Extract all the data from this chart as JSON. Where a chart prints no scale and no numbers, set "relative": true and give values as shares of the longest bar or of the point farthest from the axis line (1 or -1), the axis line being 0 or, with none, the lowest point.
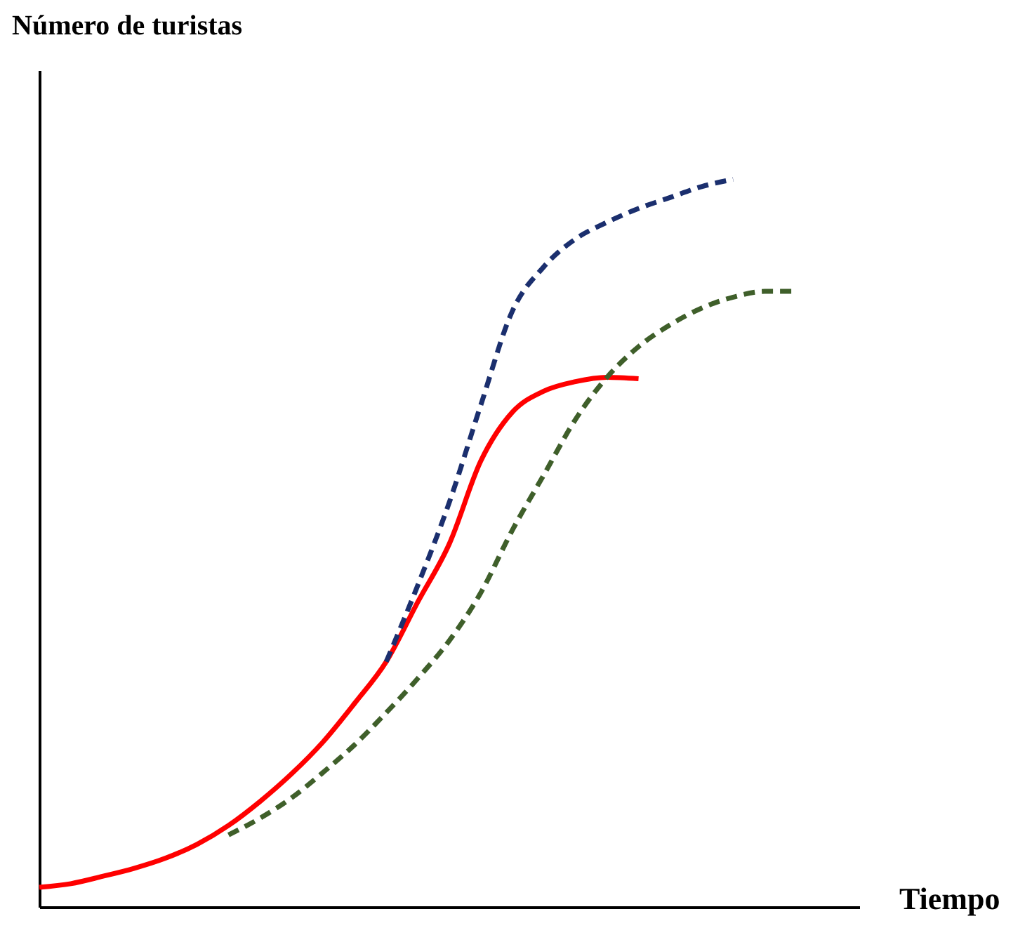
{
  "chart_data": {
    "type": "line",
    "relative": true,
    "xlabel": "Tiempo",
    "ylabel": "Número de turistas",
    "tick_labels": false,
    "grid": false,
    "legend": false,
    "categories": [
      null,
      null,
      null,
      null,
      null,
      null,
      null,
      null,
      null,
      null,
      null,
      null,
      null,
      null,
      null,
      null,
      null,
      null,
      null,
      null,
      null,
      null,
      null,
      null,
      null,
      null,
      null
    ],
    "series": [
      {
        "color": "#ff0000",
        "line_style": "solid",
        "values": [
          0.027,
          0.032,
          0.042,
          0.053,
          0.067,
          0.086,
          0.112,
          0.145,
          0.183,
          0.227,
          0.28,
          0.337,
          0.419,
          0.499,
          0.613,
          0.68,
          0.709,
          0.722,
          0.728,
          0.726,
          null,
          null,
          null,
          null,
          null,
          null,
          null
        ]
      },
      {
        "color": "#1b2f6e",
        "line_style": "dashed",
        "values": [
          null,
          null,
          null,
          null,
          null,
          null,
          null,
          null,
          null,
          null,
          null,
          0.337,
          0.442,
          0.556,
          0.69,
          0.819,
          0.88,
          0.918,
          0.941,
          0.96,
          0.975,
          0.99,
          1.0,
          null,
          null,
          null,
          null
        ]
      },
      {
        "color": "#3f5f2a",
        "line_style": "dashed",
        "values": [
          null,
          null,
          null,
          null,
          null,
          null,
          0.099,
          0.122,
          0.15,
          0.185,
          0.223,
          0.267,
          0.314,
          0.366,
          0.432,
          0.518,
          0.594,
          0.67,
          0.728,
          0.77,
          0.8,
          0.823,
          0.838,
          0.846,
          0.846,
          null,
          null
        ]
      }
    ]
  }
}
